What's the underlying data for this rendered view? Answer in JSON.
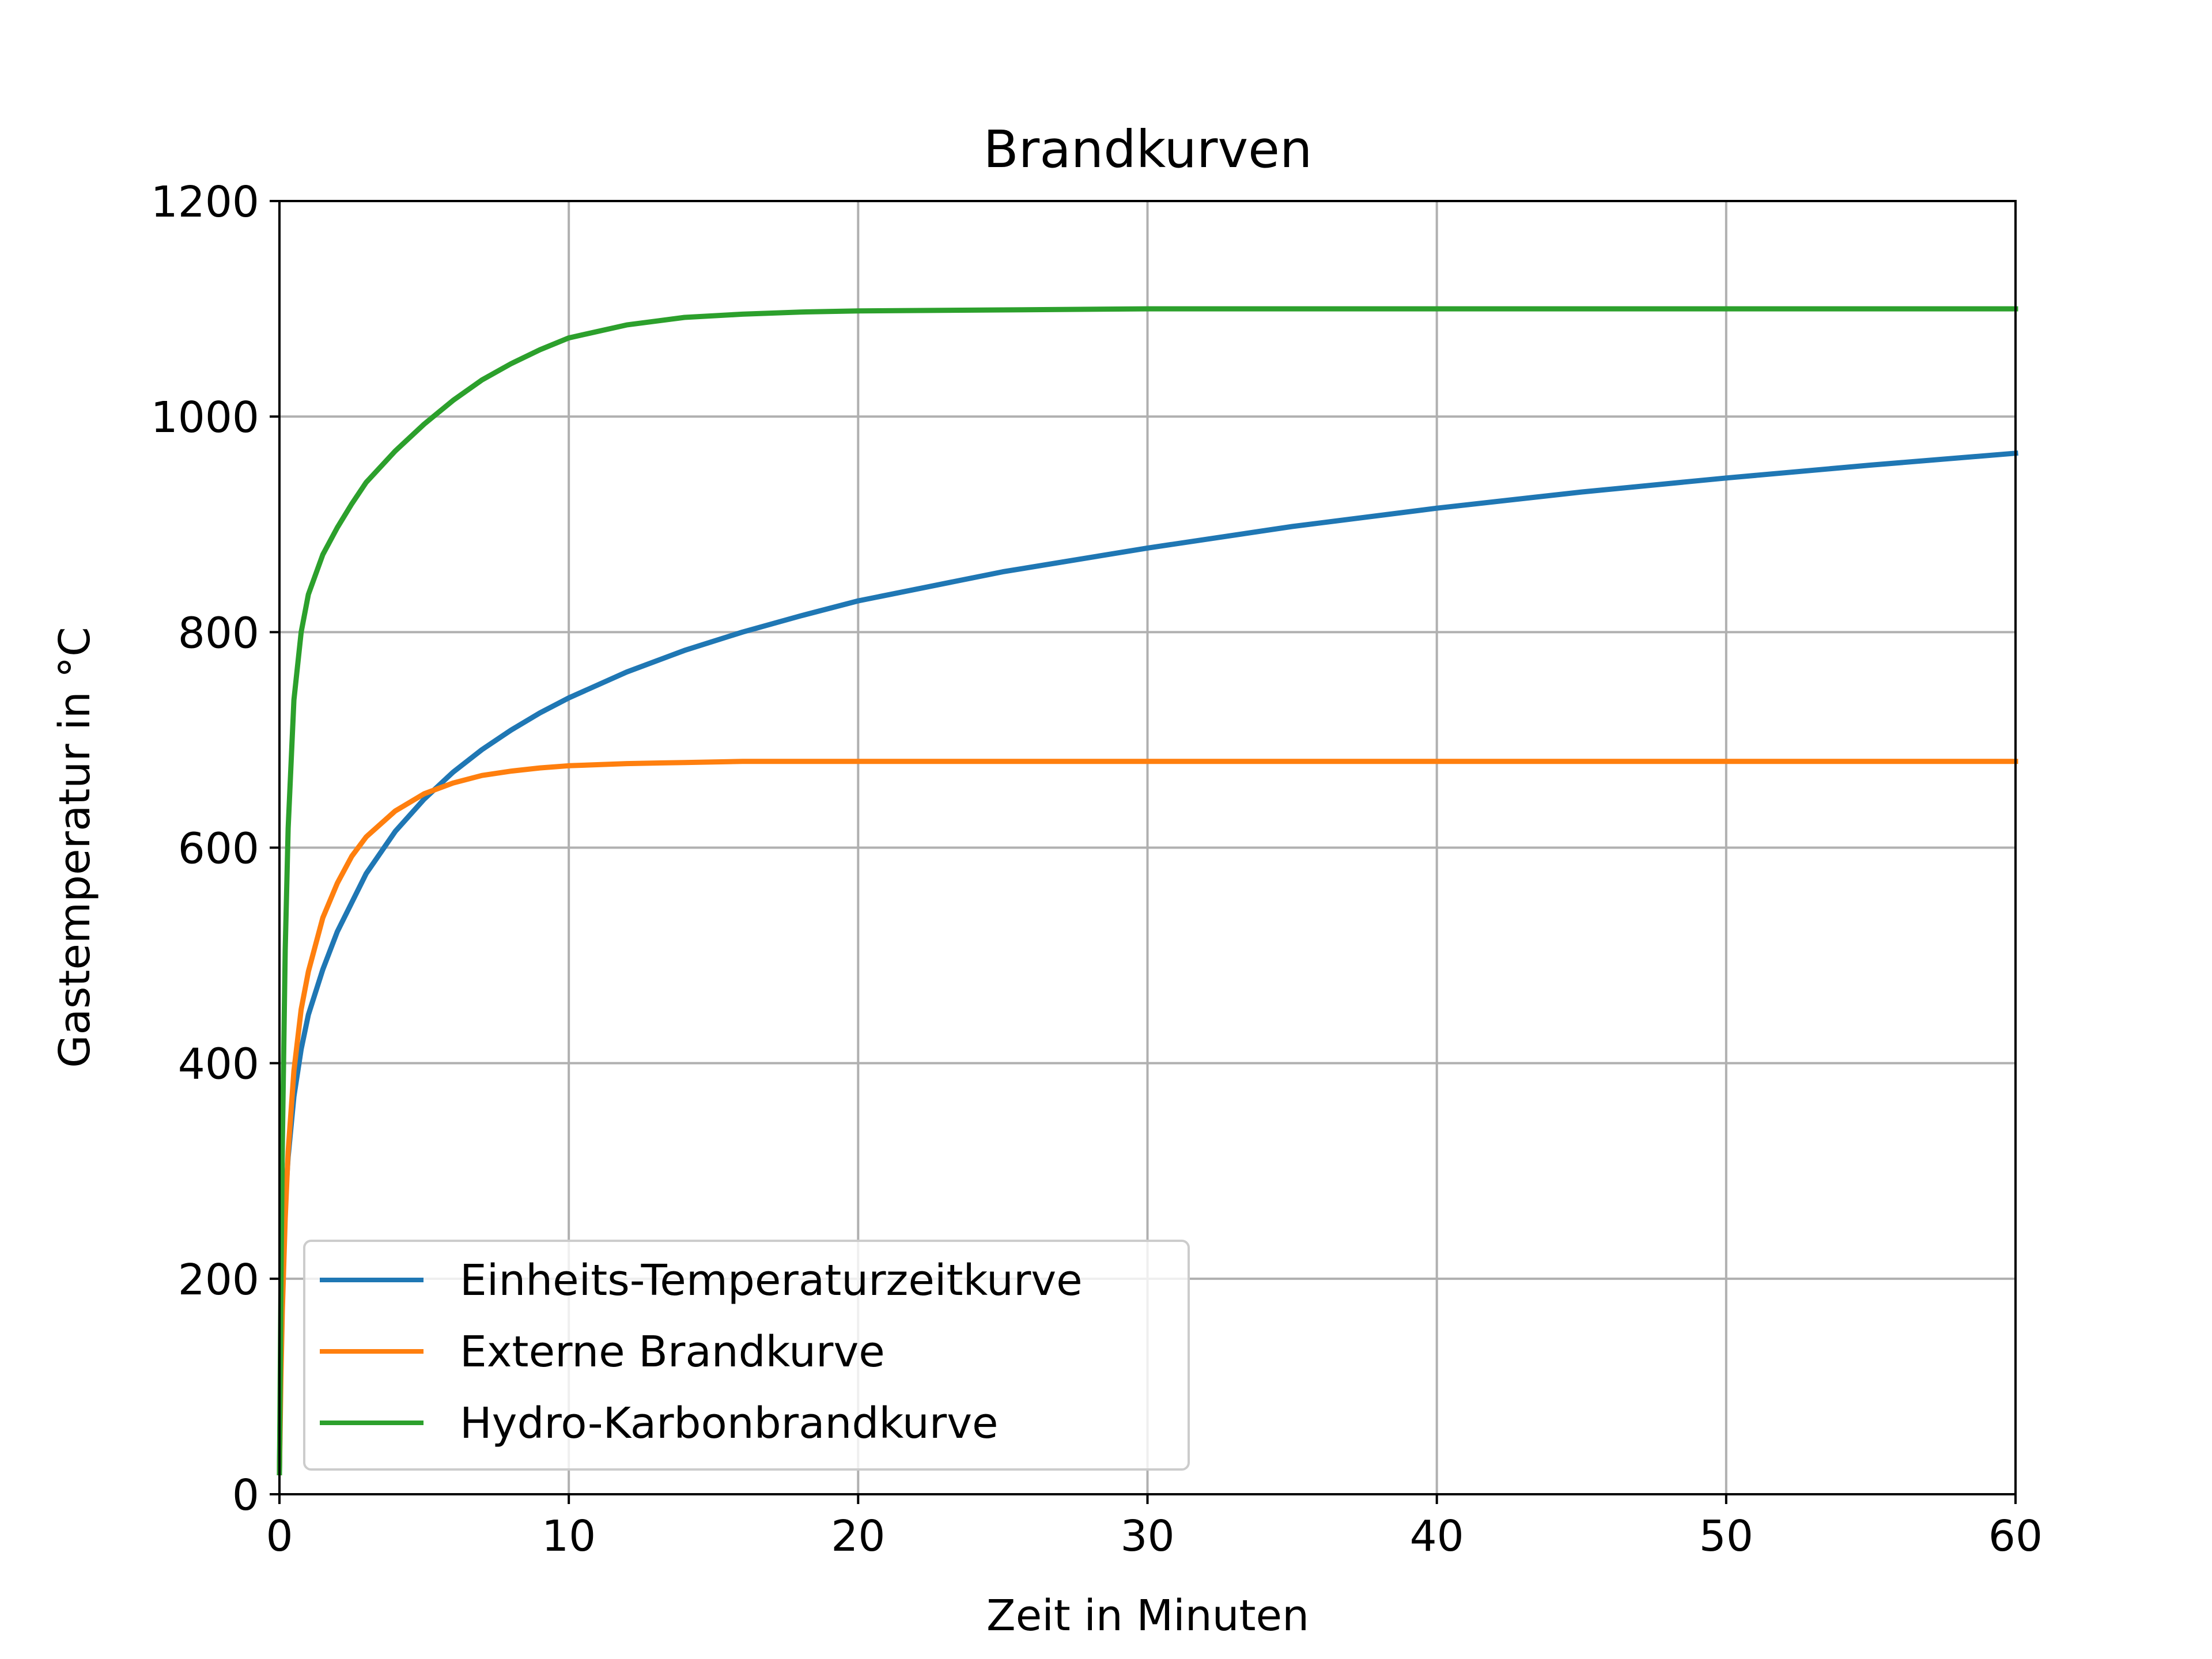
{
  "chart_data": {
    "type": "line",
    "title": "Brandkurven",
    "xlabel": "Zeit in Minuten",
    "ylabel": "Gastemperatur in °C",
    "xlim": [
      0,
      60
    ],
    "ylim": [
      0,
      1200
    ],
    "xticks": [
      0,
      10,
      20,
      30,
      40,
      50,
      60
    ],
    "yticks": [
      0,
      200,
      400,
      600,
      800,
      1000,
      1200
    ],
    "grid": true,
    "legend_position": "lower-left",
    "x": [
      0,
      0.05,
      0.1,
      0.2,
      0.3,
      0.5,
      0.75,
      1,
      1.5,
      2,
      2.5,
      3,
      4,
      5,
      6,
      7,
      8,
      9,
      10,
      12,
      14,
      16,
      18,
      20,
      25,
      30,
      35,
      40,
      45,
      50,
      55,
      60
    ],
    "series": [
      {
        "name": "Einheits-Temperaturzeitkurve",
        "color": "#1f77b4",
        "values": [
          20,
          140,
          200,
          270,
          313,
          369,
          413,
          445,
          487,
          522,
          549,
          576,
          615,
          645,
          670,
          691,
          709,
          725,
          739,
          763,
          783,
          800,
          815,
          829,
          856,
          878,
          898,
          915,
          930,
          943,
          955,
          966
        ]
      },
      {
        "name": "Externe Brandkurve",
        "color": "#ff7f0e",
        "values": [
          20,
          106,
          170,
          256,
          318,
          393,
          450,
          485,
          535,
          567,
          592,
          610,
          634,
          650,
          660,
          667,
          671,
          674,
          676,
          678,
          679,
          680,
          680,
          680,
          680,
          680,
          680,
          680,
          680,
          680,
          680,
          680
        ]
      },
      {
        "name": "Hydro-Karbonbrandkurve",
        "color": "#2ca02c",
        "values": [
          20,
          190,
          323,
          505,
          618,
          737,
          800,
          835,
          872,
          897,
          919,
          939,
          968,
          993,
          1015,
          1034,
          1049,
          1062,
          1073,
          1085,
          1092,
          1095,
          1097,
          1098,
          1099,
          1100,
          1100,
          1100,
          1100,
          1100,
          1100,
          1100
        ]
      }
    ]
  }
}
